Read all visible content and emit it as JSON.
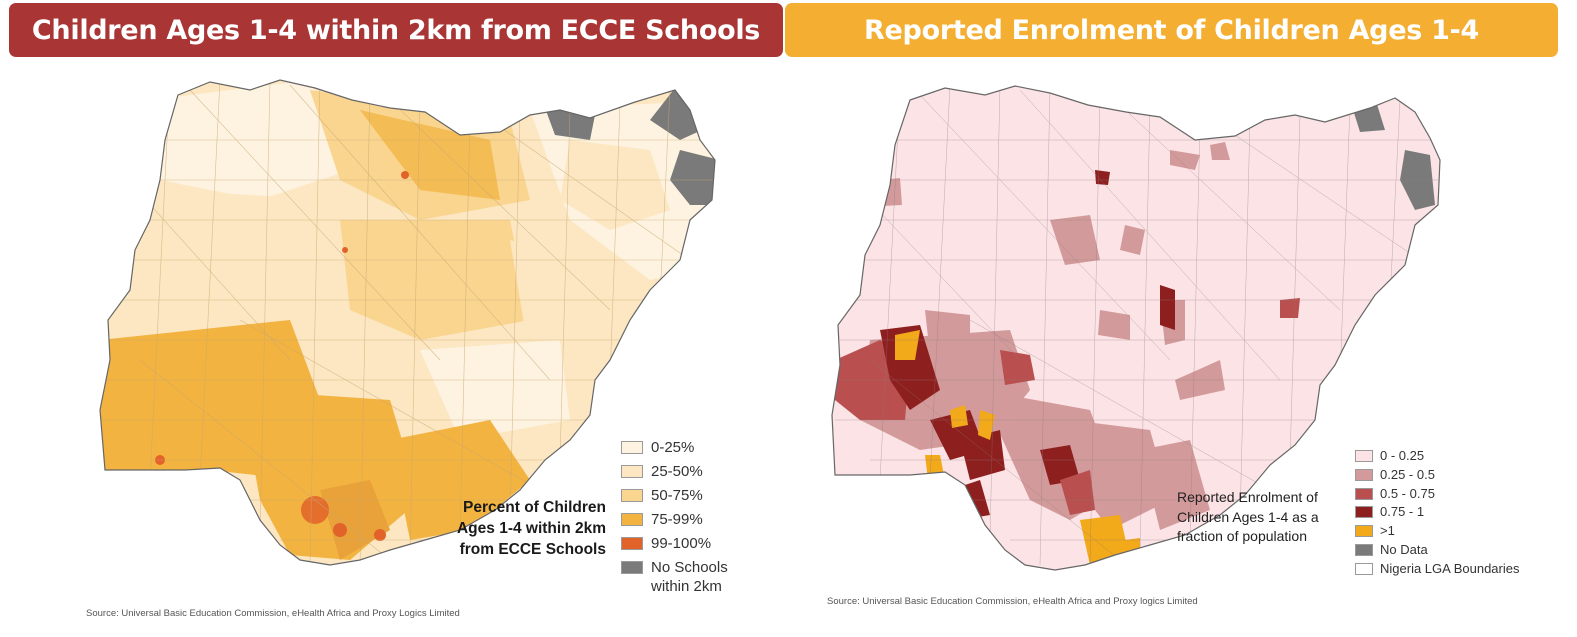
{
  "left_panel": {
    "title": "Children Ages 1-4 within 2km from ECCE Schools",
    "banner_color": "#a93535",
    "legend_title": "Percent of Children\nAges 1-4 within 2km\nfrom ECCE Schools",
    "legend": [
      {
        "label": "0-25%",
        "color": "#fdf3e0"
      },
      {
        "label": "25-50%",
        "color": "#fce7c2"
      },
      {
        "label": "50-75%",
        "color": "#f9d590"
      },
      {
        "label": "75-99%",
        "color": "#f2b340"
      },
      {
        "label": "99-100%",
        "color": "#e2632a"
      },
      {
        "label": "No Schools\nwithin 2km",
        "color": "#7a7a7a"
      }
    ],
    "source": "Source: Universal Basic Education Commission, eHealth Africa and Proxy Logics Limited"
  },
  "right_panel": {
    "title": "Reported Enrolment of Children Ages 1-4",
    "banner_color": "#f4ae32",
    "legend_title": "Reported Enrolment of\nChildren Ages 1-4 as a\nfraction of population",
    "legend": [
      {
        "label": "0 - 0.25",
        "color": "#fbe3e6"
      },
      {
        "label": "0.25 - 0.5",
        "color": "#d39a9b"
      },
      {
        "label": "0.5 - 0.75",
        "color": "#b9504f"
      },
      {
        "label": "0.75 - 1",
        "color": "#8e1f1f"
      },
      {
        "label": ">1",
        "color": "#f2a91a"
      },
      {
        "label": "No Data",
        "color": "#7a7a7a"
      },
      {
        "label": "Nigeria LGA Boundaries",
        "color": "#ffffff"
      }
    ],
    "source": "Source: Universal Basic Education Commission, eHealth Africa and Proxy logics Limited"
  }
}
